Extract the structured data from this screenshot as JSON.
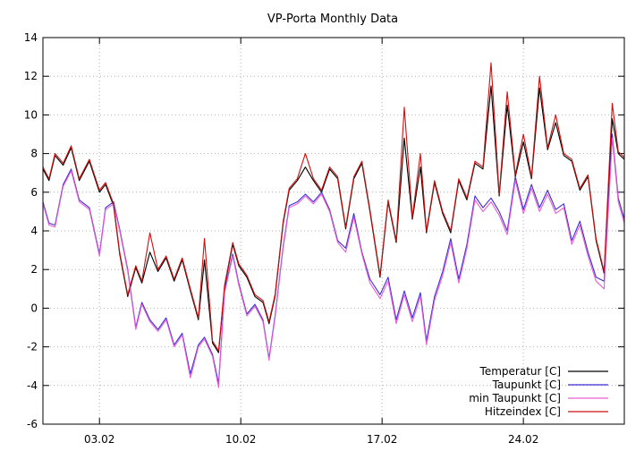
{
  "chart_data": {
    "type": "line",
    "title": "VP-Porta Monthly Data",
    "xlabel": "",
    "ylabel": "",
    "x_unit": "day of February",
    "xlim": [
      0.2,
      29.0
    ],
    "ylim": [
      -6,
      14
    ],
    "yticks": [
      -6,
      -4,
      -2,
      0,
      2,
      4,
      6,
      8,
      10,
      12,
      14
    ],
    "xticks": [
      {
        "value": 3,
        "label": "03.02"
      },
      {
        "value": 10,
        "label": "10.02"
      },
      {
        "value": 17,
        "label": "17.02"
      },
      {
        "value": 24,
        "label": "24.02"
      }
    ],
    "grid": true,
    "legend_position": "bottom-right",
    "series": [
      {
        "name": "Temperatur [C]",
        "color": "#000000",
        "x": [
          0.2,
          0.5,
          0.8,
          1.2,
          1.6,
          2.0,
          2.5,
          3.0,
          3.3,
          3.7,
          4.0,
          4.4,
          4.8,
          5.1,
          5.5,
          5.9,
          6.3,
          6.7,
          7.1,
          7.5,
          7.9,
          8.2,
          8.6,
          8.9,
          9.2,
          9.6,
          9.9,
          10.3,
          10.7,
          11.1,
          11.4,
          11.7,
          12.1,
          12.4,
          12.8,
          13.2,
          13.6,
          14.0,
          14.4,
          14.8,
          15.2,
          15.6,
          16.0,
          16.4,
          16.9,
          17.3,
          17.7,
          18.1,
          18.5,
          18.9,
          19.2,
          19.6,
          20.0,
          20.4,
          20.8,
          21.2,
          21.6,
          22.0,
          22.4,
          22.8,
          23.2,
          23.6,
          24.0,
          24.4,
          24.8,
          25.2,
          25.6,
          26.0,
          26.4,
          26.8,
          27.2,
          27.6,
          28.0,
          28.4,
          28.7,
          29.0
        ],
        "values": [
          7.2,
          6.6,
          7.9,
          7.4,
          8.3,
          6.6,
          7.6,
          6.0,
          6.4,
          5.3,
          2.8,
          0.6,
          2.1,
          1.3,
          2.9,
          1.9,
          2.6,
          1.4,
          2.5,
          0.9,
          -0.6,
          2.5,
          -1.8,
          -2.3,
          1.1,
          3.3,
          2.2,
          1.6,
          0.6,
          0.3,
          -0.8,
          0.6,
          4.4,
          6.1,
          6.6,
          7.3,
          6.6,
          6.0,
          7.2,
          6.7,
          4.1,
          6.7,
          7.5,
          5.0,
          1.6,
          5.5,
          3.4,
          8.8,
          4.6,
          7.3,
          3.9,
          6.5,
          4.9,
          3.9,
          6.6,
          5.6,
          7.5,
          7.2,
          11.5,
          5.8,
          10.5,
          6.8,
          8.6,
          6.7,
          11.4,
          8.2,
          9.6,
          7.9,
          7.6,
          6.1,
          6.8,
          3.5,
          1.8,
          9.8,
          8.0,
          7.7
        ]
      },
      {
        "name": "Taupunkt [C]",
        "color": "#3b2fd3",
        "x": [
          0.2,
          0.5,
          0.8,
          1.2,
          1.6,
          2.0,
          2.5,
          3.0,
          3.3,
          3.7,
          4.0,
          4.4,
          4.8,
          5.1,
          5.5,
          5.9,
          6.3,
          6.7,
          7.1,
          7.5,
          7.9,
          8.2,
          8.6,
          8.9,
          9.2,
          9.6,
          9.9,
          10.3,
          10.7,
          11.1,
          11.4,
          11.7,
          12.1,
          12.4,
          12.8,
          13.2,
          13.6,
          14.0,
          14.4,
          14.8,
          15.2,
          15.6,
          16.0,
          16.4,
          16.9,
          17.3,
          17.7,
          18.1,
          18.5,
          18.9,
          19.2,
          19.6,
          20.0,
          20.4,
          20.8,
          21.2,
          21.6,
          22.0,
          22.4,
          22.8,
          23.2,
          23.6,
          24.0,
          24.4,
          24.8,
          25.2,
          25.6,
          26.0,
          26.4,
          26.8,
          27.2,
          27.6,
          28.0,
          28.4,
          28.7,
          29.0
        ],
        "values": [
          5.5,
          4.4,
          4.3,
          6.4,
          7.2,
          5.6,
          5.2,
          2.8,
          5.2,
          5.5,
          4.1,
          2.0,
          -1.0,
          0.3,
          -0.6,
          -1.1,
          -0.5,
          -1.9,
          -1.3,
          -3.4,
          -1.9,
          -1.5,
          -2.4,
          -3.9,
          0.9,
          2.8,
          1.3,
          -0.3,
          0.2,
          -0.6,
          -2.6,
          -0.4,
          3.2,
          5.3,
          5.5,
          5.9,
          5.5,
          6.0,
          5.1,
          3.5,
          3.1,
          4.9,
          2.9,
          1.5,
          0.7,
          1.6,
          -0.6,
          0.9,
          -0.5,
          0.8,
          -1.7,
          0.6,
          1.9,
          3.6,
          1.5,
          3.3,
          5.8,
          5.2,
          5.7,
          5.0,
          4.0,
          6.8,
          5.1,
          6.4,
          5.2,
          6.1,
          5.1,
          5.4,
          3.5,
          4.5,
          2.9,
          1.6,
          1.4,
          9.0,
          5.7,
          4.6
        ]
      },
      {
        "name": "min Taupunkt [C]",
        "color": "#e85ed8",
        "x": [
          0.2,
          0.5,
          0.8,
          1.2,
          1.6,
          2.0,
          2.5,
          3.0,
          3.3,
          3.7,
          4.0,
          4.4,
          4.8,
          5.1,
          5.5,
          5.9,
          6.3,
          6.7,
          7.1,
          7.5,
          7.9,
          8.2,
          8.6,
          8.9,
          9.2,
          9.6,
          9.9,
          10.3,
          10.7,
          11.1,
          11.4,
          11.7,
          12.1,
          12.4,
          12.8,
          13.2,
          13.6,
          14.0,
          14.4,
          14.8,
          15.2,
          15.6,
          16.0,
          16.4,
          16.9,
          17.3,
          17.7,
          18.1,
          18.5,
          18.9,
          19.2,
          19.6,
          20.0,
          20.4,
          20.8,
          21.2,
          21.6,
          22.0,
          22.4,
          22.8,
          23.2,
          23.6,
          24.0,
          24.4,
          24.8,
          25.2,
          25.6,
          26.0,
          26.4,
          26.8,
          27.2,
          27.6,
          28.0,
          28.4,
          28.7,
          29.0
        ],
        "values": [
          5.4,
          4.3,
          4.2,
          6.3,
          7.1,
          5.5,
          5.1,
          2.7,
          5.1,
          5.4,
          4.0,
          1.9,
          -1.1,
          0.2,
          -0.7,
          -1.2,
          -0.6,
          -2.0,
          -1.4,
          -3.6,
          -2.0,
          -1.6,
          -2.5,
          -4.1,
          0.8,
          2.7,
          1.2,
          -0.4,
          0.1,
          -0.7,
          -2.7,
          -0.5,
          3.1,
          5.2,
          5.4,
          5.8,
          5.4,
          5.9,
          5.0,
          3.4,
          2.9,
          4.7,
          2.8,
          1.3,
          0.5,
          1.4,
          -0.8,
          0.7,
          -0.7,
          0.6,
          -1.9,
          0.4,
          1.7,
          3.4,
          1.3,
          3.1,
          5.6,
          5.0,
          5.5,
          4.8,
          3.8,
          6.6,
          4.9,
          6.2,
          5.0,
          5.9,
          4.9,
          5.2,
          3.3,
          4.3,
          2.7,
          1.4,
          1.0,
          8.8,
          5.5,
          4.4
        ]
      },
      {
        "name": "Hitzeindex [C]",
        "color": "#cc1111",
        "x": [
          0.2,
          0.5,
          0.8,
          1.2,
          1.6,
          2.0,
          2.5,
          3.0,
          3.3,
          3.7,
          4.0,
          4.4,
          4.8,
          5.1,
          5.5,
          5.9,
          6.3,
          6.7,
          7.1,
          7.5,
          7.9,
          8.2,
          8.6,
          8.9,
          9.2,
          9.6,
          9.9,
          10.3,
          10.7,
          11.1,
          11.4,
          11.7,
          12.1,
          12.4,
          12.8,
          13.2,
          13.6,
          14.0,
          14.4,
          14.8,
          15.2,
          15.6,
          16.0,
          16.4,
          16.9,
          17.3,
          17.7,
          18.1,
          18.5,
          18.9,
          19.2,
          19.6,
          20.0,
          20.4,
          20.8,
          21.2,
          21.6,
          22.0,
          22.4,
          22.8,
          23.2,
          23.6,
          24.0,
          24.4,
          24.8,
          25.2,
          25.6,
          26.0,
          26.4,
          26.8,
          27.2,
          27.6,
          28.0,
          28.4,
          28.7,
          29.0
        ],
        "values": [
          7.3,
          6.7,
          8.0,
          7.5,
          8.4,
          6.7,
          7.7,
          6.1,
          6.5,
          5.4,
          2.9,
          0.7,
          2.2,
          1.4,
          3.9,
          2.0,
          2.7,
          1.5,
          2.6,
          1.0,
          -0.5,
          3.6,
          -1.7,
          -2.2,
          1.2,
          3.4,
          2.3,
          1.7,
          0.7,
          0.4,
          -0.7,
          0.7,
          4.5,
          6.2,
          6.7,
          8.0,
          6.7,
          6.1,
          7.3,
          6.8,
          4.2,
          6.8,
          7.6,
          5.1,
          1.7,
          5.6,
          3.5,
          10.4,
          4.7,
          8.0,
          4.0,
          6.6,
          5.0,
          4.0,
          6.7,
          5.7,
          7.6,
          7.3,
          12.7,
          5.9,
          11.2,
          6.9,
          9.0,
          6.8,
          12.0,
          8.3,
          10.0,
          8.0,
          7.7,
          6.2,
          6.9,
          3.6,
          1.9,
          10.6,
          8.1,
          7.8
        ]
      }
    ]
  }
}
